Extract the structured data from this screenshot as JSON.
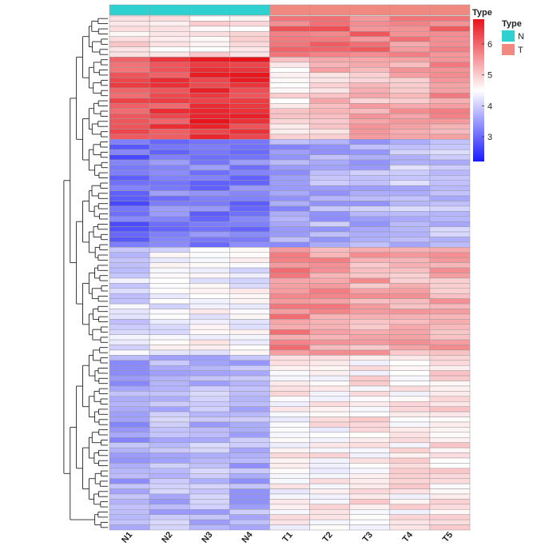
{
  "chart_data": {
    "type": "heatmap",
    "title": "",
    "columns": [
      "N1",
      "N2",
      "N3",
      "N4",
      "T1",
      "T2",
      "T3",
      "T4",
      "T5"
    ],
    "annotation": {
      "title": "Type",
      "groups": [
        "N",
        "N",
        "N",
        "N",
        "T",
        "T",
        "T",
        "T",
        "T"
      ],
      "legend": [
        {
          "label": "N",
          "color": "#2fd0d0"
        },
        {
          "label": "T",
          "color": "#f08a80"
        }
      ]
    },
    "colorbar": {
      "title": "Type",
      "ticks": [
        3,
        4,
        5,
        6
      ],
      "range": [
        2.2,
        6.8
      ],
      "colors": {
        "low": "#1a1aff",
        "mid": "#ffffff",
        "high": "#e8141c"
      }
    },
    "row_count": 100,
    "row_blocks": [
      {
        "rows": 8,
        "values": [
          4.8,
          4.8,
          4.8,
          4.8,
          5.9,
          5.9,
          5.8,
          5.6,
          5.8
        ]
      },
      {
        "rows": 16,
        "values": [
          6.2,
          6.3,
          6.5,
          6.5,
          4.8,
          5.1,
          5.2,
          5.3,
          5.5
        ]
      },
      {
        "rows": 21,
        "values": [
          3.0,
          3.2,
          3.2,
          3.2,
          3.6,
          3.7,
          3.7,
          3.9,
          3.9
        ]
      },
      {
        "rows": 21,
        "values": [
          4.1,
          4.4,
          4.5,
          4.4,
          5.6,
          5.5,
          5.3,
          5.3,
          5.3
        ]
      },
      {
        "rows": 34,
        "values": [
          3.6,
          3.8,
          3.8,
          3.7,
          4.6,
          4.6,
          4.7,
          4.7,
          4.8
        ]
      }
    ],
    "row_labels_visible": false,
    "dendrogram": "rows",
    "legend_placement": "right"
  }
}
